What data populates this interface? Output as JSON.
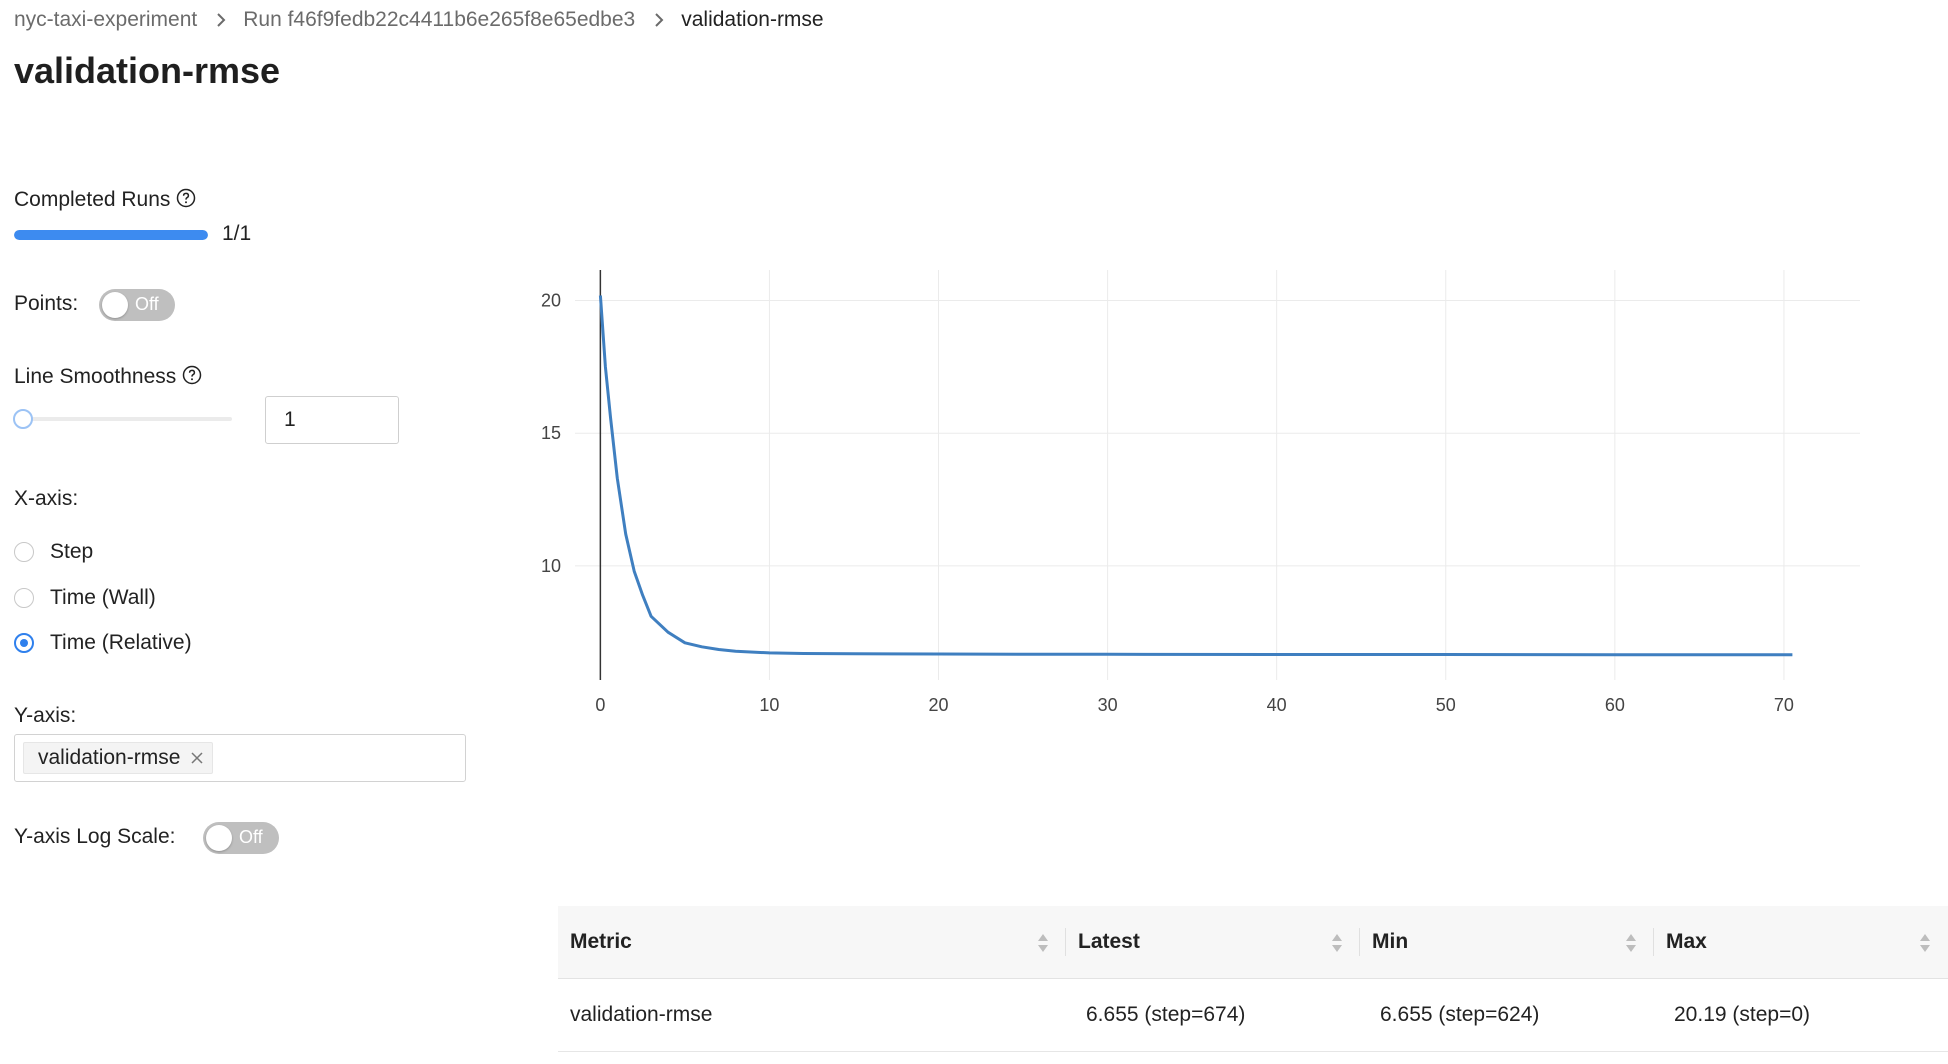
{
  "breadcrumb": {
    "experiment": "nyc-taxi-experiment",
    "run": "Run f46f9fedb22c4411b6e265f8e65edbe3",
    "current": "validation-rmse"
  },
  "page_title": "validation-rmse",
  "controls": {
    "completed_runs_label": "Completed Runs",
    "completed_runs_text": "1/1",
    "completed_runs_progress": 1.0,
    "points_label": "Points:",
    "points_toggle": "Off",
    "line_smoothness_label": "Line Smoothness",
    "line_smoothness_value": "1",
    "line_smoothness_slider_level": 0.0,
    "xaxis_label": "X-axis:",
    "xaxis_options": [
      "Step",
      "Time (Wall)",
      "Time (Relative)"
    ],
    "xaxis_selected": "Time (Relative)",
    "yaxis_label": "Y-axis:",
    "yaxis_tag": "validation-rmse",
    "ylog_label": "Y-axis Log Scale:",
    "ylog_toggle": "Off"
  },
  "colors": {
    "accent": "#2f80ed",
    "progress": "#3d8bf0",
    "line": "#3f7fc0",
    "toggle_off": "#bfbfbf"
  },
  "icons": {
    "help": "help-circle-icon",
    "breadcrumb_sep": "chevron-right-icon",
    "tag_close": "close-icon",
    "sort": "sort-icon"
  },
  "chart_data": {
    "type": "line",
    "title": "",
    "xlabel": "",
    "ylabel": "",
    "xlim": [
      -1.5,
      74.5
    ],
    "ylim": [
      5.7,
      21.15
    ],
    "xticks": [
      0,
      10,
      20,
      30,
      40,
      50,
      60,
      70
    ],
    "yticks": [
      10,
      15,
      20
    ],
    "grid": true,
    "legend": "none",
    "series": [
      {
        "x": [
          0,
          0.3,
          0.6,
          1,
          1.5,
          2,
          2.5,
          3,
          4,
          5,
          6,
          7,
          8,
          10,
          12,
          15,
          20,
          25,
          30,
          40,
          50,
          60,
          70.5
        ],
        "y": [
          20.19,
          17.5,
          15.6,
          13.3,
          11.2,
          9.8,
          8.9,
          8.1,
          7.5,
          7.1,
          6.95,
          6.85,
          6.78,
          6.72,
          6.7,
          6.69,
          6.68,
          6.67,
          6.67,
          6.66,
          6.66,
          6.655,
          6.655
        ]
      }
    ]
  },
  "table": {
    "columns": [
      "Metric",
      "Latest",
      "Min",
      "Max"
    ],
    "rows": [
      [
        "validation-rmse",
        "6.655 (step=674)",
        "6.655 (step=624)",
        "20.19 (step=0)"
      ]
    ]
  }
}
